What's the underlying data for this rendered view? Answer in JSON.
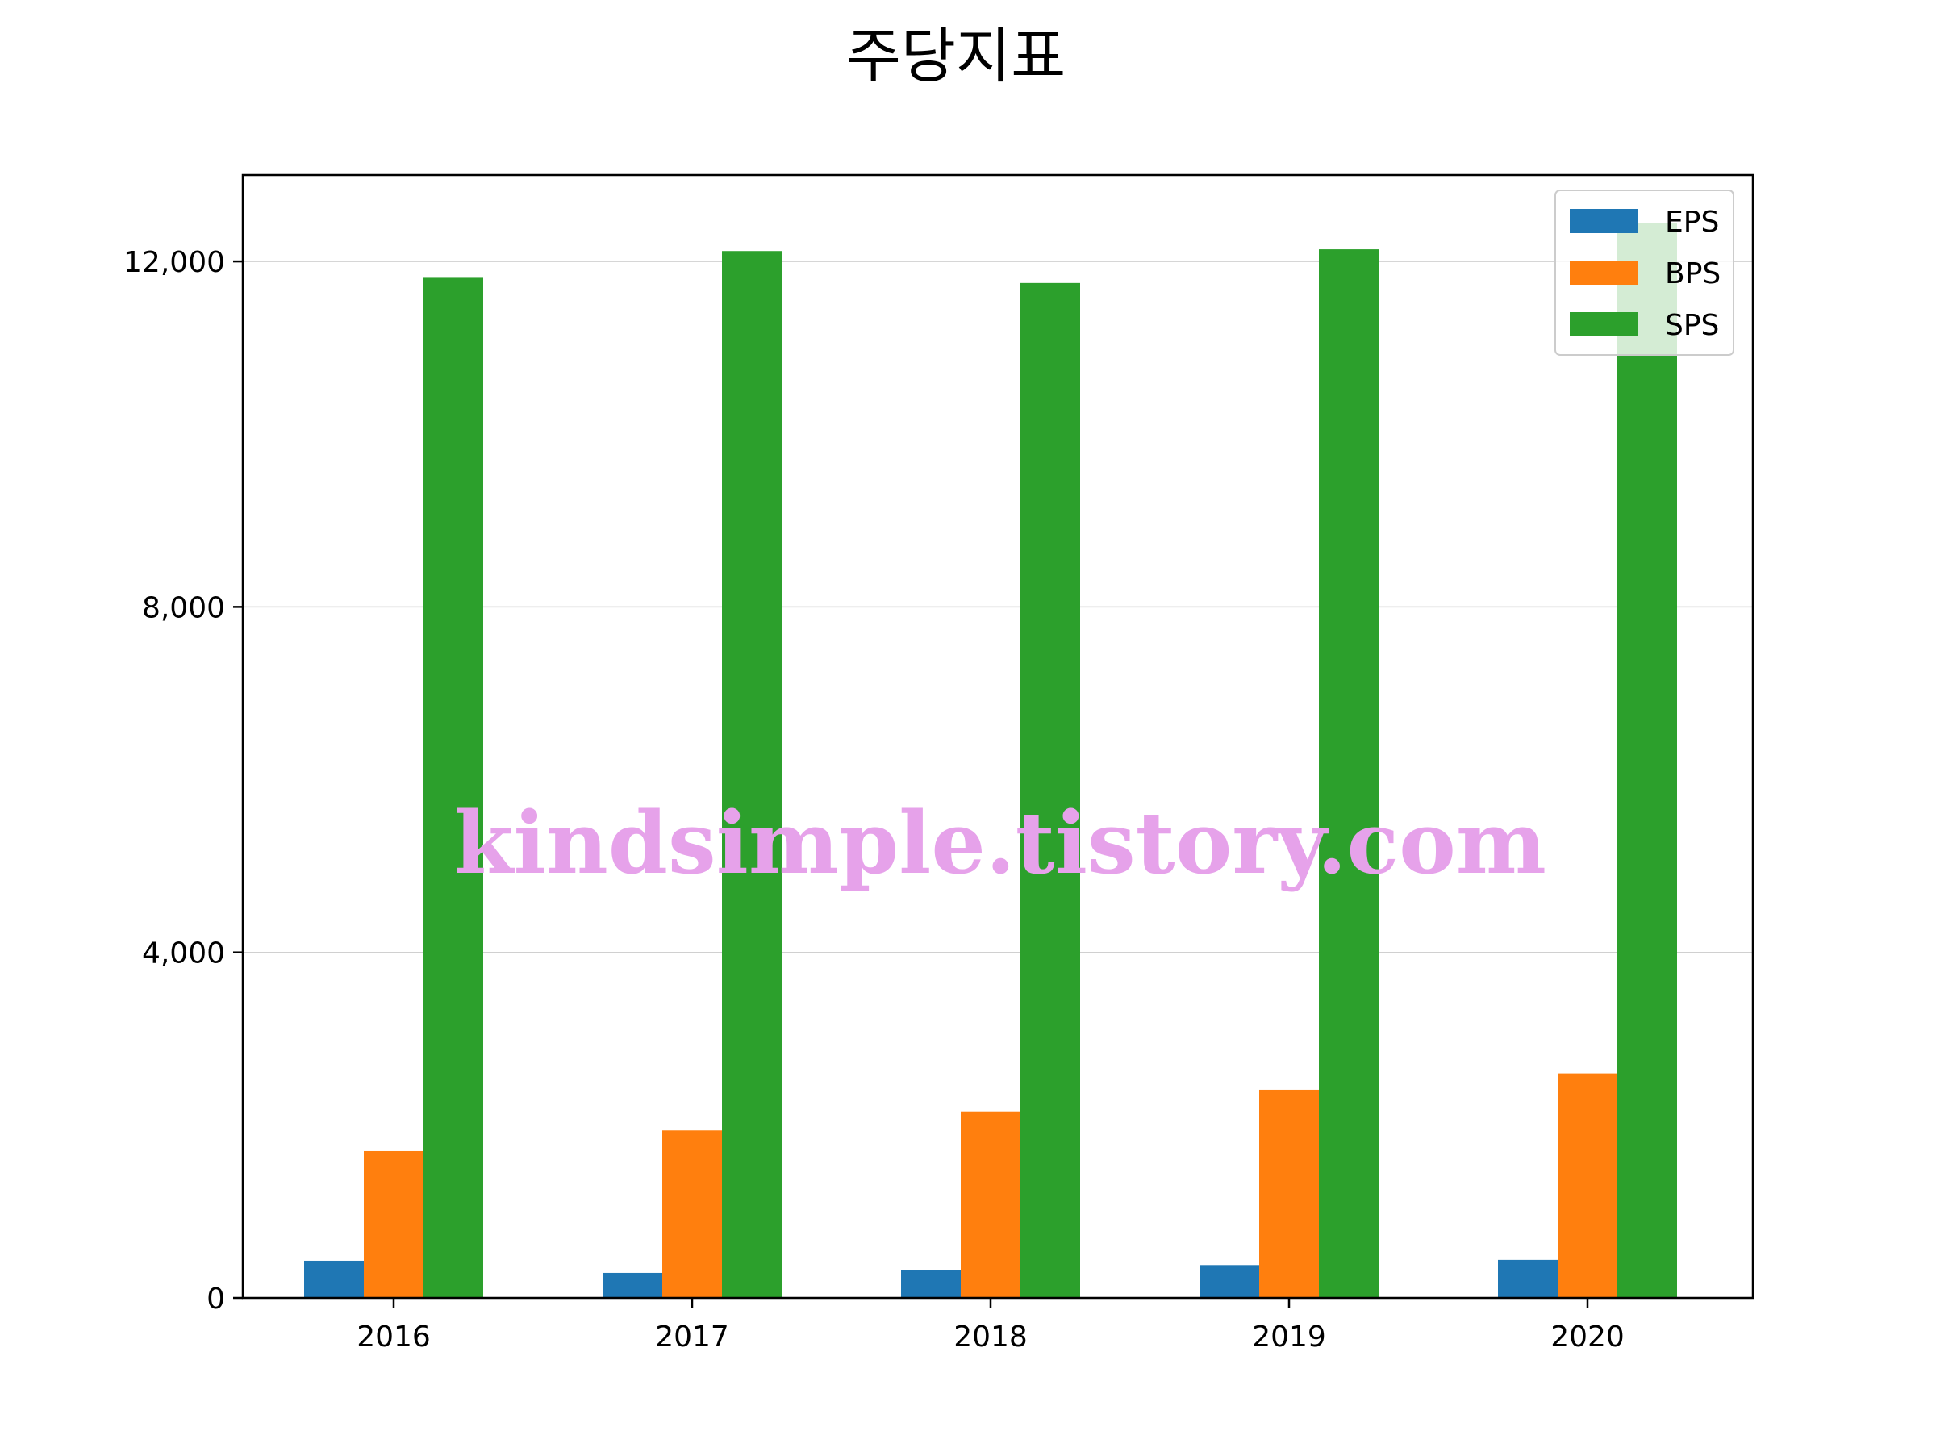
{
  "chart_data": {
    "type": "bar",
    "title": "주당지표",
    "xlabel": "",
    "ylabel": "",
    "categories": [
      "2016",
      "2017",
      "2018",
      "2019",
      "2020"
    ],
    "series": [
      {
        "name": "EPS",
        "color": "#1f77b4",
        "values": [
          430,
          290,
          320,
          380,
          440
        ]
      },
      {
        "name": "BPS",
        "color": "#ff7f0e",
        "values": [
          1700,
          1940,
          2160,
          2410,
          2600
        ]
      },
      {
        "name": "SPS",
        "color": "#2ca02c",
        "values": [
          11810,
          12120,
          11750,
          12140,
          12440
        ]
      }
    ],
    "ylim": [
      0,
      13000
    ],
    "yticks": [
      0,
      4000,
      8000,
      12000
    ],
    "ytick_labels": [
      "0",
      "4,000",
      "8,000",
      "12,000"
    ],
    "grid": "horizontal",
    "legend_position": "upper right"
  },
  "watermark": {
    "text": "kindsimple.tistory.com",
    "color": "#e6a2ea"
  }
}
